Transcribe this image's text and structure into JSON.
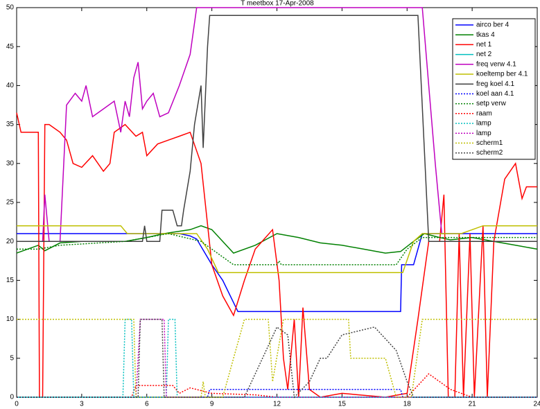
{
  "chart_data": {
    "type": "line",
    "title": "T meetbox     17-Apr-2008",
    "xlim": [
      0,
      24
    ],
    "xticks": [
      0,
      3,
      6,
      9,
      12,
      15,
      18,
      21,
      24
    ],
    "ylim": [
      0,
      50
    ],
    "yticks": [
      0,
      5,
      10,
      15,
      20,
      25,
      30,
      35,
      40,
      45,
      50
    ],
    "legend": "upper-right",
    "series": [
      {
        "name": "airco ber 4",
        "color": "#0000ff",
        "style": "solid",
        "x": [
          0,
          7.5,
          8,
          8.3,
          9,
          9.5,
          10.2,
          17.7,
          17.75,
          18.3,
          18.7,
          24
        ],
        "values": [
          21,
          21,
          20.7,
          20.3,
          17,
          15,
          11,
          11,
          17,
          17,
          21,
          21
        ]
      },
      {
        "name": "tkas 4",
        "color": "#008000",
        "style": "solid",
        "x": [
          0,
          1,
          1.3,
          2,
          3,
          5,
          6,
          6.8,
          7.5,
          8,
          8.5,
          9,
          9.5,
          10,
          11,
          12,
          13,
          14,
          15,
          16,
          17,
          17.7,
          18.3,
          18.8,
          19.5,
          20,
          21,
          22,
          23,
          24
        ],
        "values": [
          18.5,
          19.5,
          18.8,
          19.8,
          20,
          20,
          20.5,
          21,
          21.3,
          21.5,
          22,
          21.5,
          20,
          18.5,
          19.5,
          21,
          20.5,
          19.8,
          19.5,
          19,
          18.5,
          18.7,
          20,
          21,
          20.5,
          20.2,
          20.5,
          20,
          19.5,
          19
        ]
      },
      {
        "name": "net 1",
        "color": "#ff0000",
        "style": "solid",
        "x": [
          0,
          0.2,
          0.8,
          1.0,
          1.05,
          1.2,
          1.3,
          1.5,
          2,
          2.3,
          2.6,
          3,
          3.5,
          4,
          4.3,
          4.5,
          5,
          5.5,
          5.8,
          6,
          6.5,
          7,
          7.5,
          8,
          8.5,
          9,
          9.5,
          10,
          10.5,
          11,
          11.8,
          12.1,
          12.3,
          12.5,
          12.8,
          13,
          13.2,
          13.5,
          14,
          15,
          17,
          18,
          18.5,
          19,
          19.5,
          19.7,
          19.9,
          20.2,
          20.4,
          20.6,
          20.9,
          21.1,
          21.5,
          21.7,
          22,
          22.5,
          23,
          23.3,
          23.5,
          24
        ],
        "values": [
          36.5,
          34,
          34,
          34,
          0,
          0,
          35,
          35,
          34,
          33,
          30,
          29.5,
          31,
          29,
          30,
          34,
          35,
          33.5,
          34,
          31,
          32.5,
          33,
          33.5,
          34,
          30,
          17,
          13,
          10.5,
          15,
          19,
          21.5,
          15,
          5,
          1,
          10,
          0,
          11.5,
          1,
          0,
          0.5,
          0,
          0.5,
          10,
          20,
          20,
          26,
          0,
          0,
          21,
          0,
          21,
          0,
          22,
          0,
          20,
          28,
          30,
          25.5,
          27,
          27
        ]
      },
      {
        "name": "net 2",
        "color": "#00bfbf",
        "style": "solid",
        "x": [
          0,
          24
        ],
        "values": [
          0,
          0
        ]
      },
      {
        "name": "freq verw 4.1",
        "color": "#bf00bf",
        "style": "solid",
        "x": [
          1.2,
          1.3,
          1.5,
          2,
          2.3,
          2.7,
          3,
          3.2,
          3.5,
          4,
          4.5,
          4.8,
          5,
          5.2,
          5.4,
          5.6,
          5.8,
          6,
          6.3,
          6.6,
          7,
          7.5,
          8,
          8.3,
          18.7,
          19,
          19.3,
          19.6
        ],
        "values": [
          20,
          26,
          20,
          20,
          37.5,
          39,
          38,
          40,
          36,
          37,
          38,
          34,
          38,
          36,
          41,
          43,
          37,
          38,
          39,
          36,
          36.5,
          40,
          44,
          50,
          50,
          40,
          30,
          21
        ]
      },
      {
        "name": "koeltemp ber 4.1",
        "color": "#bfbf00",
        "style": "solid",
        "x": [
          0,
          4.8,
          5.1,
          8.3,
          8.8,
          9.3,
          17.8,
          18.3,
          18.7,
          20.5,
          21.5,
          24
        ],
        "values": [
          22,
          22,
          21,
          21,
          19,
          16,
          16,
          20,
          21,
          21,
          22,
          22
        ]
      },
      {
        "name": "freg koel 4.1",
        "color": "#404040",
        "style": "solid",
        "x": [
          0,
          5.8,
          5.9,
          6,
          6.6,
          6.7,
          7.2,
          7.4,
          7.6,
          7.7,
          8,
          8.2,
          8.5,
          8.6,
          8.8,
          8.9,
          18.5,
          19,
          24
        ],
        "values": [
          20,
          20,
          22,
          20,
          20,
          24,
          24,
          22,
          22,
          24,
          29,
          35,
          40,
          32,
          45,
          49,
          49,
          20,
          20
        ]
      },
      {
        "name": "koel aan 4.1",
        "color": "#0000ff",
        "style": "dotted",
        "x": [
          0,
          8.8,
          8.9,
          17.7,
          17.8,
          24
        ],
        "values": [
          0,
          0,
          1,
          1,
          0,
          0
        ]
      },
      {
        "name": "setp verw",
        "color": "#008000",
        "style": "dotted",
        "x": [
          0,
          1,
          2,
          5,
          7,
          8.5,
          9,
          9.5,
          10,
          12,
          12.1,
          12.2,
          17.5,
          18,
          18.7,
          24
        ],
        "values": [
          19,
          19,
          19.5,
          20,
          21,
          20,
          19,
          18,
          17,
          17,
          17.5,
          17,
          17,
          19,
          20.5,
          20.5
        ]
      },
      {
        "name": "raam",
        "color": "#ff0000",
        "style": "dotted",
        "x": [
          0,
          5.3,
          5.5,
          7.2,
          7.5,
          8,
          9,
          11,
          12,
          18,
          18.5,
          19,
          19.5,
          20,
          21,
          24
        ],
        "values": [
          0,
          0,
          1.5,
          1.5,
          0.5,
          1.2,
          0.5,
          0.3,
          0,
          0,
          1.5,
          3,
          2,
          1,
          0,
          0
        ]
      },
      {
        "name": "lamp",
        "color": "#00bfbf",
        "style": "dotted",
        "x": [
          0,
          4.9,
          5,
          5.3,
          5.4,
          6.9,
          7,
          7.3,
          7.4,
          24
        ],
        "values": [
          0,
          0,
          10,
          10,
          0,
          0,
          10,
          10,
          0,
          0
        ]
      },
      {
        "name": "lamp",
        "color": "#bf00bf",
        "style": "dotted",
        "x": [
          0,
          5.5,
          5.7,
          6.8,
          6.9,
          24
        ],
        "values": [
          0,
          0,
          10,
          10,
          0,
          0
        ]
      },
      {
        "name": "scherm1",
        "color": "#bfbf00",
        "style": "dotted",
        "x": [
          0,
          5.4,
          5.5,
          8.5,
          8.6,
          8.7,
          9.5,
          10,
          10.5,
          11.6,
          11.8,
          12.3,
          13,
          15.3,
          15.4,
          17,
          17.5,
          18.2,
          18.7,
          24
        ],
        "values": [
          10,
          10,
          0,
          0,
          2,
          0,
          0,
          5,
          10,
          10,
          2,
          10,
          10,
          10,
          5,
          5,
          0,
          0,
          10,
          10
        ]
      },
      {
        "name": "scherm2",
        "color": "#404040",
        "style": "dotted",
        "x": [
          0,
          5.6,
          5.7,
          6.7,
          6.8,
          10.5,
          11,
          11.5,
          12,
          12.5,
          12.8,
          13.5,
          14,
          14.3,
          15,
          16.5,
          17.5,
          18,
          18.3,
          24
        ],
        "values": [
          0,
          0,
          10,
          10,
          0,
          0,
          3,
          6,
          9,
          8,
          0,
          2,
          5,
          5,
          8,
          9,
          6,
          2,
          0,
          0
        ]
      }
    ]
  }
}
